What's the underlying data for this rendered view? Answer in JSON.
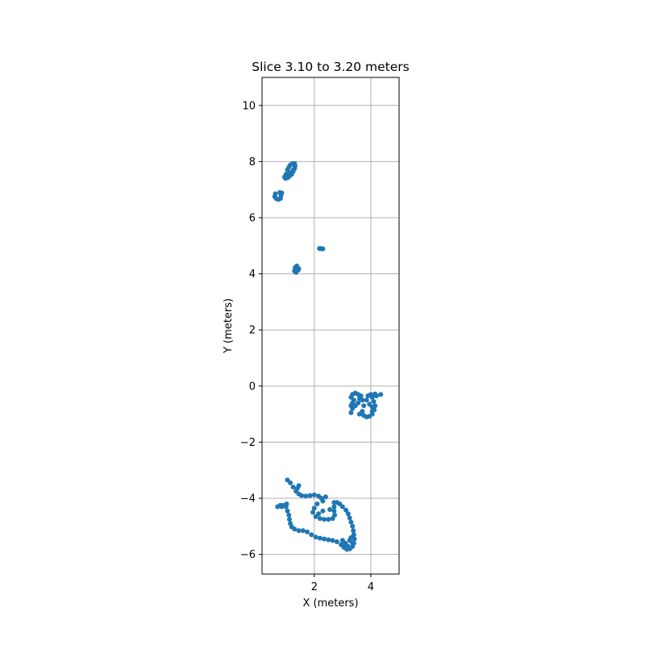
{
  "chart_data": {
    "type": "scatter",
    "title": "Slice 3.10 to 3.20 meters",
    "xlabel": "X (meters)",
    "ylabel": "Y (meters)",
    "xlim": [
      0.15,
      5.0
    ],
    "ylim": [
      -6.7,
      11.0
    ],
    "xticks": [
      2,
      4
    ],
    "yticks": [
      -6,
      -4,
      -2,
      0,
      2,
      4,
      6,
      8,
      10
    ],
    "grid": true,
    "series_color": "#1f77b4",
    "series": [
      {
        "points": [
          [
            0.95,
            7.45
          ],
          [
            1.0,
            7.55
          ],
          [
            1.05,
            7.7
          ],
          [
            1.1,
            7.8
          ],
          [
            1.15,
            7.88
          ],
          [
            1.22,
            7.92
          ],
          [
            1.3,
            7.93
          ],
          [
            1.32,
            7.85
          ],
          [
            1.3,
            7.75
          ],
          [
            1.25,
            7.65
          ],
          [
            1.2,
            7.55
          ],
          [
            1.12,
            7.48
          ],
          [
            1.05,
            7.42
          ],
          [
            0.98,
            7.4
          ],
          [
            1.15,
            7.6
          ],
          [
            1.25,
            7.7
          ],
          [
            0.62,
            6.85
          ],
          [
            0.6,
            6.75
          ],
          [
            0.65,
            6.68
          ],
          [
            0.72,
            6.65
          ],
          [
            0.8,
            6.68
          ],
          [
            0.82,
            6.78
          ],
          [
            0.78,
            6.9
          ],
          [
            0.85,
            6.88
          ],
          [
            2.18,
            4.9
          ],
          [
            2.22,
            4.9
          ],
          [
            2.26,
            4.89
          ],
          [
            2.3,
            4.89
          ],
          [
            1.3,
            4.1
          ],
          [
            1.35,
            4.15
          ],
          [
            1.4,
            4.2
          ],
          [
            1.38,
            4.28
          ],
          [
            1.32,
            4.22
          ],
          [
            1.42,
            4.12
          ],
          [
            1.45,
            4.18
          ],
          [
            1.35,
            4.05
          ],
          [
            3.3,
            -0.4
          ],
          [
            3.35,
            -0.3
          ],
          [
            3.45,
            -0.25
          ],
          [
            3.55,
            -0.3
          ],
          [
            3.6,
            -0.45
          ],
          [
            3.55,
            -0.6
          ],
          [
            3.45,
            -0.7
          ],
          [
            3.35,
            -0.8
          ],
          [
            3.3,
            -0.95
          ],
          [
            3.35,
            -0.6
          ],
          [
            3.3,
            -0.7
          ],
          [
            3.4,
            -0.5
          ],
          [
            3.65,
            -0.35
          ],
          [
            3.7,
            -0.5
          ],
          [
            3.75,
            -0.7
          ],
          [
            3.7,
            -0.9
          ],
          [
            3.75,
            -1.05
          ],
          [
            3.85,
            -1.1
          ],
          [
            3.95,
            -1.08
          ],
          [
            4.05,
            -1.0
          ],
          [
            4.12,
            -0.85
          ],
          [
            4.15,
            -0.7
          ],
          [
            4.1,
            -0.55
          ],
          [
            4.05,
            -0.4
          ],
          [
            4.0,
            -0.3
          ],
          [
            3.9,
            -0.35
          ],
          [
            3.85,
            -0.5
          ],
          [
            3.95,
            -0.65
          ],
          [
            4.05,
            -0.75
          ],
          [
            4.2,
            -0.35
          ],
          [
            4.15,
            -0.28
          ],
          [
            4.35,
            -0.3
          ],
          [
            4.05,
            -0.9
          ],
          [
            3.6,
            -1.0
          ],
          [
            0.7,
            -4.3
          ],
          [
            0.8,
            -4.25
          ],
          [
            0.9,
            -4.25
          ],
          [
            1.0,
            -4.3
          ],
          [
            1.05,
            -4.45
          ],
          [
            1.1,
            -4.6
          ],
          [
            1.12,
            -4.75
          ],
          [
            1.15,
            -4.9
          ],
          [
            1.2,
            -5.02
          ],
          [
            1.3,
            -5.1
          ],
          [
            1.45,
            -5.15
          ],
          [
            1.6,
            -5.15
          ],
          [
            1.75,
            -5.2
          ],
          [
            1.9,
            -5.3
          ],
          [
            2.05,
            -5.38
          ],
          [
            2.2,
            -5.42
          ],
          [
            2.35,
            -5.45
          ],
          [
            2.5,
            -5.48
          ],
          [
            2.65,
            -5.5
          ],
          [
            2.8,
            -5.55
          ],
          [
            2.95,
            -5.65
          ],
          [
            3.05,
            -5.75
          ],
          [
            3.15,
            -5.82
          ],
          [
            3.25,
            -5.8
          ],
          [
            3.35,
            -5.72
          ],
          [
            3.4,
            -5.6
          ],
          [
            3.42,
            -5.45
          ],
          [
            3.4,
            -5.3
          ],
          [
            3.38,
            -5.15
          ],
          [
            3.35,
            -5.0
          ],
          [
            3.3,
            -4.85
          ],
          [
            3.25,
            -4.7
          ],
          [
            3.2,
            -4.55
          ],
          [
            3.12,
            -4.42
          ],
          [
            3.0,
            -4.3
          ],
          [
            2.9,
            -4.2
          ],
          [
            2.8,
            -4.15
          ],
          [
            2.7,
            -4.15
          ],
          [
            1.05,
            -3.35
          ],
          [
            1.15,
            -3.45
          ],
          [
            1.25,
            -3.6
          ],
          [
            1.35,
            -3.75
          ],
          [
            1.45,
            -3.85
          ],
          [
            1.55,
            -3.9
          ],
          [
            1.7,
            -3.92
          ],
          [
            1.85,
            -3.9
          ],
          [
            2.0,
            -3.88
          ],
          [
            2.15,
            -3.92
          ],
          [
            2.25,
            -4.0
          ],
          [
            2.3,
            -4.1
          ],
          [
            2.4,
            -3.95
          ],
          [
            1.45,
            -3.55
          ],
          [
            1.4,
            -3.65
          ],
          [
            2.1,
            -4.2
          ],
          [
            2.0,
            -4.35
          ],
          [
            1.95,
            -4.5
          ],
          [
            2.05,
            -4.65
          ],
          [
            2.2,
            -4.72
          ],
          [
            2.35,
            -4.75
          ],
          [
            2.5,
            -4.75
          ],
          [
            2.65,
            -4.72
          ],
          [
            2.72,
            -4.6
          ],
          [
            2.7,
            -4.45
          ],
          [
            2.55,
            -4.4
          ],
          [
            2.3,
            -4.45
          ],
          [
            2.15,
            -4.55
          ],
          [
            2.7,
            -4.3
          ],
          [
            3.25,
            -5.5
          ],
          [
            3.1,
            -5.6
          ],
          [
            3.0,
            -5.5
          ],
          [
            3.35,
            -5.6
          ],
          [
            3.3,
            -5.4
          ],
          [
            3.18,
            -5.7
          ],
          [
            0.85,
            -4.3
          ],
          [
            1.02,
            -4.2
          ]
        ]
      }
    ]
  }
}
